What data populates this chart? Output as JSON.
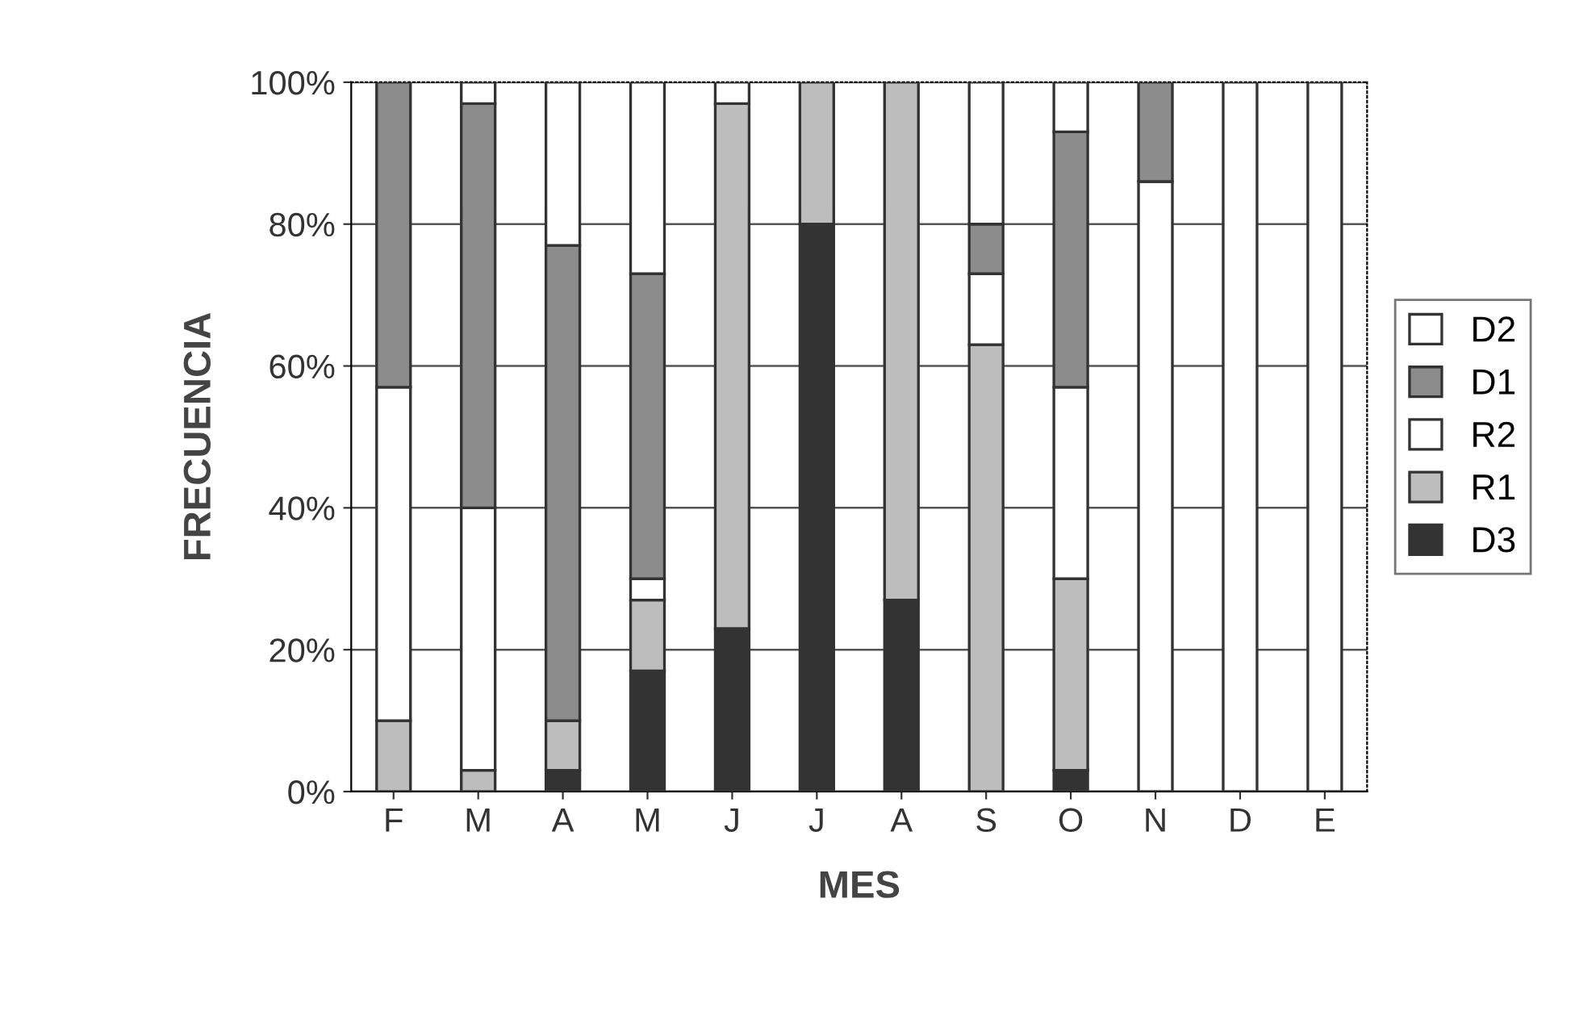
{
  "chart_data": {
    "type": "bar",
    "stacked": true,
    "xlabel": "MES",
    "ylabel": "FRECUENCIA",
    "categories": [
      "F",
      "M",
      "A",
      "M",
      "J",
      "J",
      "A",
      "S",
      "O",
      "N",
      "D",
      "E"
    ],
    "series": [
      {
        "name": "D3",
        "color": "#333333",
        "values": [
          null,
          null,
          3,
          17,
          23,
          80,
          27,
          null,
          3,
          null,
          null,
          null
        ]
      },
      {
        "name": "R1",
        "color": "#bdbdbd",
        "values": [
          10,
          3,
          7,
          10,
          74,
          20,
          73,
          63,
          27,
          null,
          null,
          null
        ]
      },
      {
        "name": "R2",
        "color": "#ffffff",
        "values": [
          47,
          37,
          null,
          3,
          null,
          null,
          null,
          10,
          27,
          86,
          null,
          null
        ]
      },
      {
        "name": "D1",
        "color": "#8c8c8c",
        "values": [
          43,
          57,
          67,
          43,
          null,
          null,
          null,
          7,
          36,
          14,
          null,
          null
        ]
      },
      {
        "name": "D2",
        "color": "#ffffff",
        "values": [
          null,
          3,
          23,
          27,
          3,
          null,
          null,
          20,
          7,
          null,
          100,
          100
        ]
      }
    ],
    "ylim": [
      0,
      100
    ],
    "yticks": [
      {
        "value": 0,
        "label": "0%"
      },
      {
        "value": 20,
        "label": "20%"
      },
      {
        "value": 40,
        "label": "40%"
      },
      {
        "value": 60,
        "label": "60%"
      },
      {
        "value": 80,
        "label": "80%"
      },
      {
        "value": 100,
        "label": "100%"
      }
    ],
    "grid": "y",
    "legend": "right"
  }
}
